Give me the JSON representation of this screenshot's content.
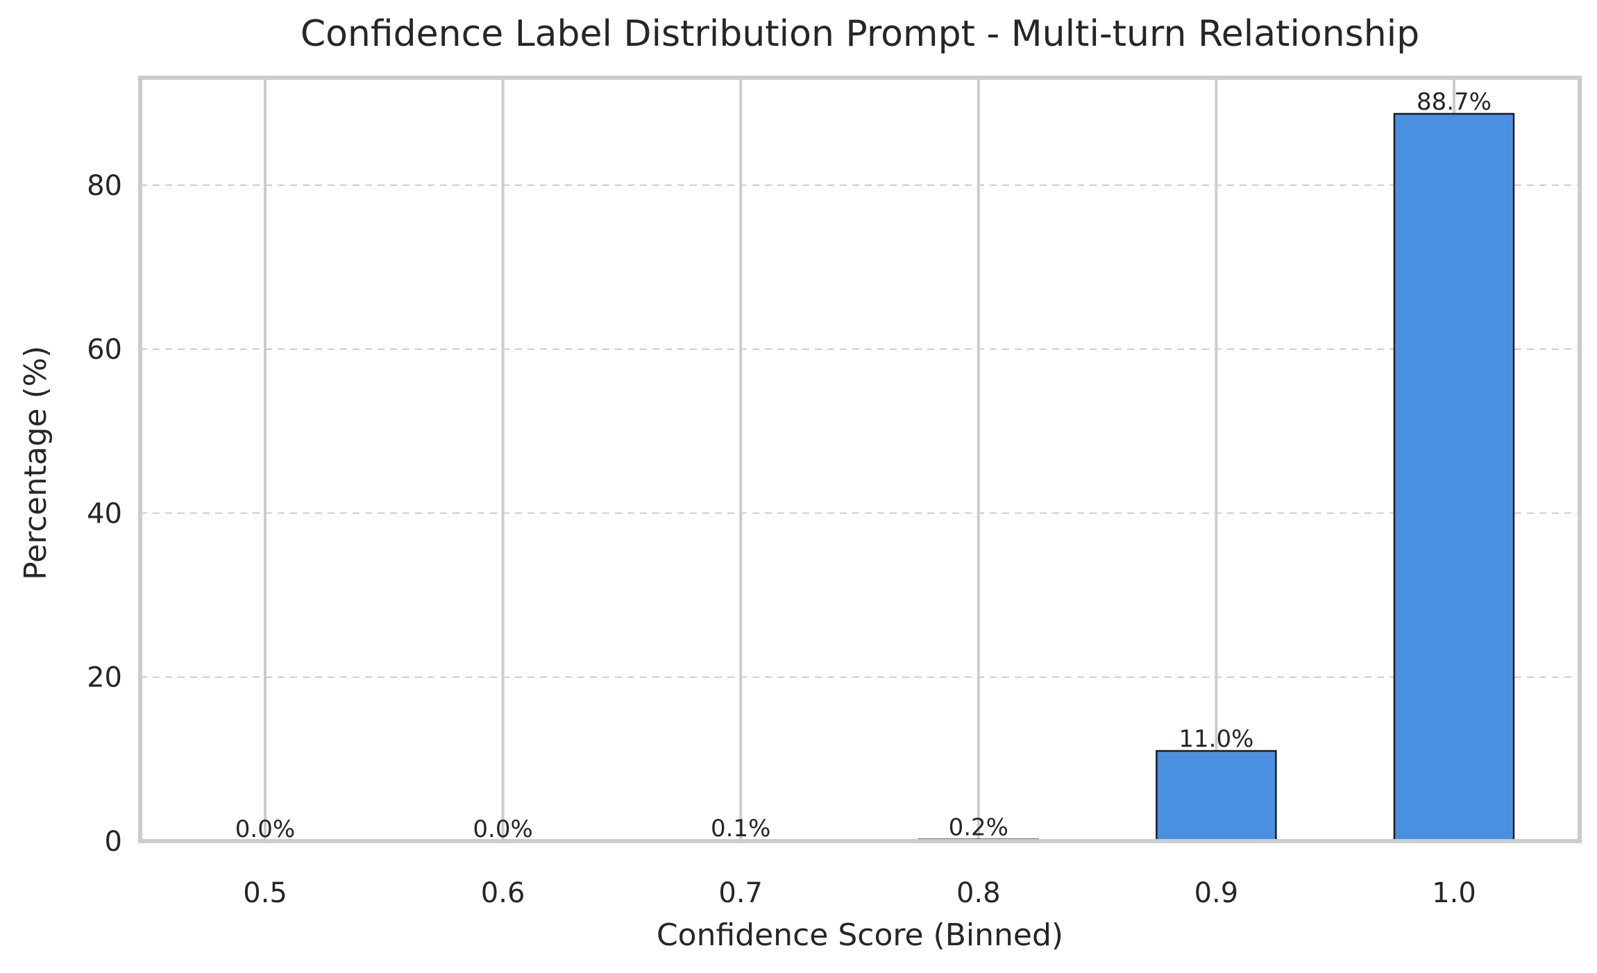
{
  "chart_data": {
    "type": "bar",
    "title": "Confidence Label Distribution Prompt - Multi-turn Relationship",
    "xlabel": "Confidence Score (Binned)",
    "ylabel": "Percentage (%)",
    "categories": [
      "0.5",
      "0.6",
      "0.7",
      "0.8",
      "0.9",
      "1.0"
    ],
    "values": [
      0.0,
      0.0,
      0.1,
      0.2,
      11.0,
      88.7
    ],
    "data_labels": [
      "0.0%",
      "0.0%",
      "0.1%",
      "0.2%",
      "11.0%",
      "88.7%"
    ],
    "yticks": [
      0,
      20,
      40,
      60,
      80
    ],
    "ylim": [
      0,
      93.1
    ],
    "grid": true,
    "bar_color": "#4a90e2",
    "bar_edge_color": "#1a1a1a",
    "grid_color": "#cccccc",
    "frame_color": "#cccccc"
  }
}
